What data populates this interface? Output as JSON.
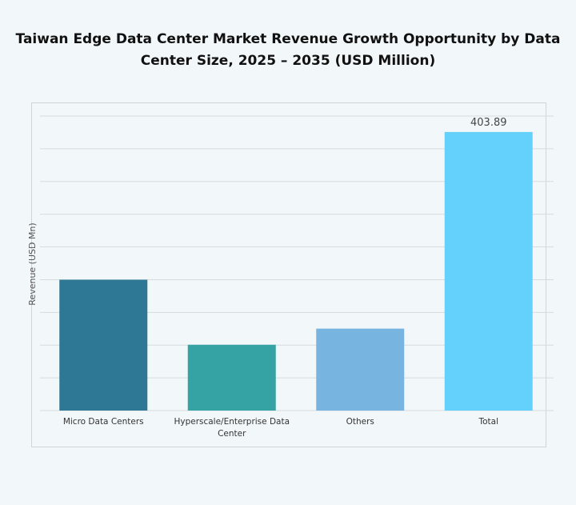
{
  "chart_data": {
    "type": "bar",
    "title": "Taiwan Edge Data Center Market Revenue Growth Opportunity by Data Center Size, 2025 – 2035 (USD Million)",
    "title_lines": [
      "Taiwan Edge Data Center Market Revenue Growth Opportunity by Data",
      "Center Size, 2025 – 2035 (USD Million)"
    ],
    "xlabel": "",
    "ylabel": "Revenue (USD Mn)",
    "categories": [
      "Micro Data Centers",
      "Hyperscale/Enterprise Data Center",
      "Others",
      "Total"
    ],
    "category_lines": [
      [
        "Micro Data Centers"
      ],
      [
        "Hyperscale/Enterprise Data",
        "Center"
      ],
      [
        "Others"
      ],
      [
        "Total"
      ]
    ],
    "values": [
      189.7,
      95.4,
      118.8,
      403.89
    ],
    "data_labels": [
      "",
      "",
      "",
      "403.89"
    ],
    "colors": [
      "#2e7896",
      "#35a3a3",
      "#78b4e0",
      "#64d0fc"
    ],
    "ylim": [
      0,
      427
    ],
    "grid": true,
    "gridline_count": 9,
    "legend": "none"
  }
}
